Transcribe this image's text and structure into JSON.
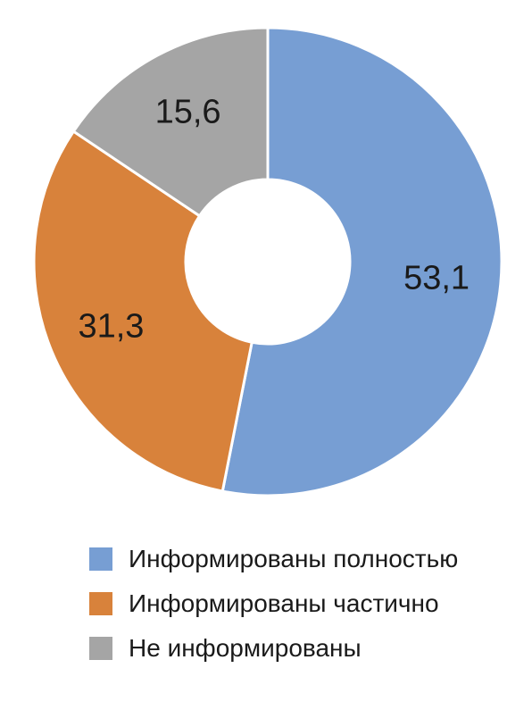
{
  "chart_data": {
    "type": "pie",
    "variant": "donut",
    "title": "",
    "legend_position": "bottom",
    "slices": [
      {
        "label": "Информированы полностью",
        "value": 53.1,
        "value_text": "53,1",
        "color": "#779ed3"
      },
      {
        "label": "Информированы частично",
        "value": 31.3,
        "value_text": "31,3",
        "color": "#d8823b"
      },
      {
        "label": "Не информированы",
        "value": 15.6,
        "value_text": "15,6",
        "color": "#a5a5a5"
      }
    ]
  },
  "legend": {
    "items": [
      {
        "label": "Информированы полностью",
        "color": "#779ed3"
      },
      {
        "label": "Информированы частично",
        "color": "#d8823b"
      },
      {
        "label": "Не информированы",
        "color": "#a5a5a5"
      }
    ]
  }
}
